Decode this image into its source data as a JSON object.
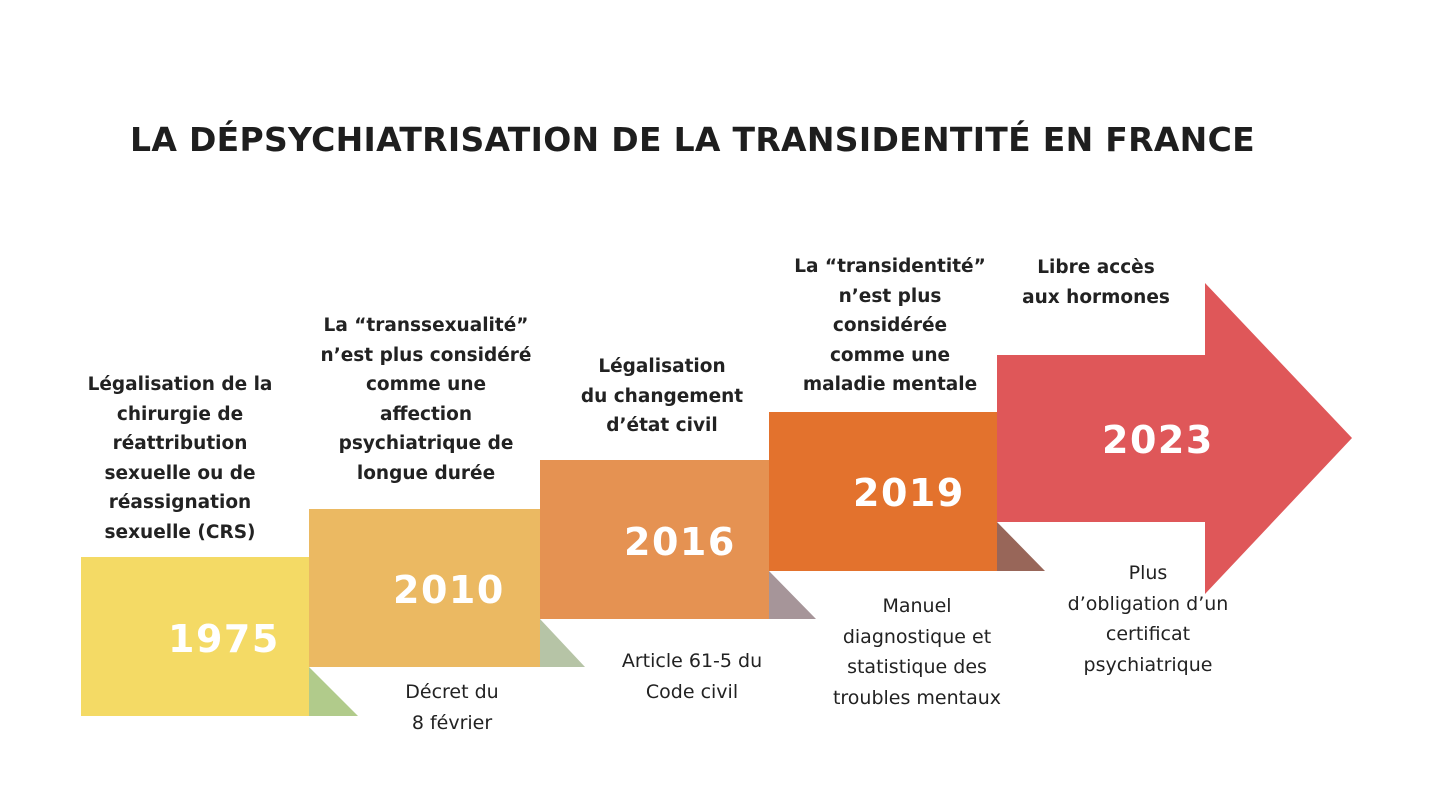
{
  "title": "LA DÉPSYCHIATRISATION DE LA TRANSIDENTITÉ EN FRANCE",
  "steps": [
    {
      "year": "1975",
      "top": "Légalisation de la\nchirurgie de\nréattribution\nsexuelle ou de\nréassignation\nsexuelle (CRS)",
      "bottom": "",
      "color": "#f4da65",
      "fold_color": "#b1cb8b"
    },
    {
      "year": "2010",
      "top": "La “transsexualité”\nn’est plus considéré\ncomme une\naffection\npsychiatrique de\nlongue durée",
      "bottom": "Décret du\n8 février",
      "color": "#ebb962",
      "fold_color": "#b6c4a6"
    },
    {
      "year": "2016",
      "top": "Légalisation\ndu changement\nd’état civil",
      "bottom": "Article 61-5 du\nCode civil",
      "color": "#e59252",
      "fold_color": "#a69599"
    },
    {
      "year": "2019",
      "top": "La “transidentité”\nn’est plus\nconsidérée\ncomme une\nmaladie mentale",
      "bottom": "Manuel\ndiagnostique et\nstatistique des\ntroubles mentaux",
      "color": "#e3722d",
      "fold_color": "#986659"
    },
    {
      "year": "2023",
      "top": "Libre accès\naux hormones",
      "bottom": "Plus\nd’obligation d’un\ncertificat\npsychiatrique",
      "color": "#df5759"
    }
  ]
}
